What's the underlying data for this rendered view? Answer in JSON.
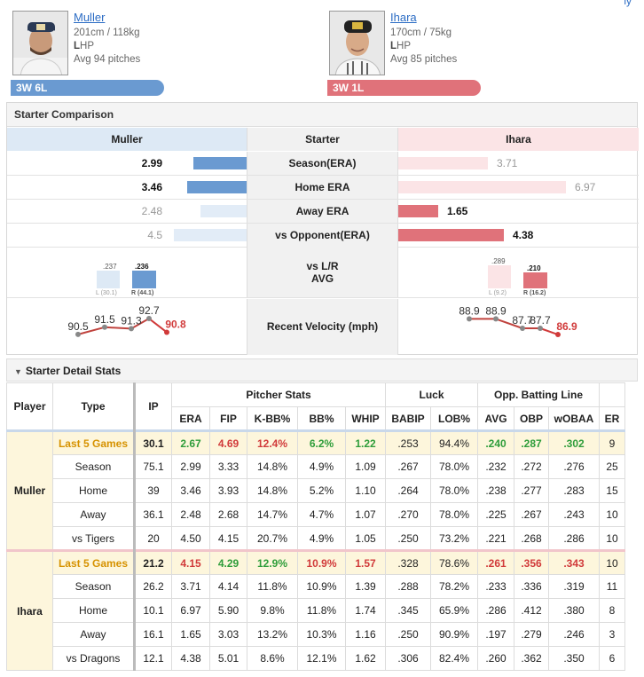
{
  "top_link": "ly",
  "pitchers": {
    "left": {
      "name": "Muller",
      "size": "201cm / 118kg",
      "hand": "LHP",
      "hand_bold": "L",
      "hand_rest": "HP",
      "avg": "Avg 94 pitches",
      "record": "3W 6L",
      "color": "#6a9ad1"
    },
    "right": {
      "name": "Ihara",
      "size": "170cm / 75kg",
      "hand": "LHP",
      "hand_bold": "L",
      "hand_rest": "HP",
      "avg": "Avg 85 pitches",
      "record": "3W 1L",
      "color": "#e0727a"
    }
  },
  "comparison": {
    "title": "Starter Comparison",
    "left_header": "Muller",
    "middle_header": "Starter",
    "right_header": "Ihara",
    "rows": [
      {
        "label": "Season(ERA)",
        "left": "2.99",
        "right": "3.71",
        "left_better": true
      },
      {
        "label": "Home ERA",
        "left": "3.46",
        "right": "6.97",
        "left_better": true
      },
      {
        "label": "Away ERA",
        "left": "2.48",
        "right": "1.65",
        "left_better": false
      },
      {
        "label": "vs Opponent(ERA)",
        "left": "4.5",
        "right": "4.38",
        "left_better": false
      }
    ],
    "lr": {
      "label1": "vs L/R",
      "label2": "AVG",
      "left": {
        "l_val": ".237",
        "r_val": ".236",
        "l_tag": "L (30.1)",
        "r_tag": "R (44.1)"
      },
      "right": {
        "l_val": ".289",
        "r_val": ".210",
        "l_tag": "L (9.2)",
        "r_tag": "R (16.2)"
      }
    },
    "velocity": {
      "label": "Recent Velocity (mph)",
      "left": [
        90.5,
        91.5,
        91.3,
        92.7,
        90.8
      ],
      "left_labels": [
        "90.5",
        "91.5",
        "91.3",
        "92.7",
        "90.8"
      ],
      "right": [
        88.9,
        88.9,
        87.7,
        87.7,
        86.9
      ],
      "right_labels": [
        "88.9",
        "88.9",
        "87.7",
        "87.7",
        "86.9"
      ]
    }
  },
  "detail": {
    "title": "Starter Detail Stats",
    "headers": {
      "player": "Player",
      "type": "Type",
      "ip": "IP",
      "pitcher_stats": "Pitcher Stats",
      "luck": "Luck",
      "opp": "Opp. Batting Line",
      "era": "ERA",
      "fip": "FIP",
      "kbb": "K-BB%",
      "bb": "BB%",
      "whip": "WHIP",
      "babip": "BABIP",
      "lob": "LOB%",
      "avg": "AVG",
      "obp": "OBP",
      "woba": "wOBAA",
      "er": "ER"
    },
    "players": [
      {
        "name": "Muller",
        "rows": [
          {
            "type": "Last 5 Games",
            "ip": "30.1",
            "era": "2.67",
            "fip": "4.69",
            "kbb": "12.4%",
            "bb": "6.2%",
            "whip": "1.22",
            "babip": ".253",
            "lob": "94.4%",
            "avg": ".240",
            "obp": ".287",
            "woba": ".302",
            "er": "9"
          },
          {
            "type": "Season",
            "ip": "75.1",
            "era": "2.99",
            "fip": "3.33",
            "kbb": "14.8%",
            "bb": "4.9%",
            "whip": "1.09",
            "babip": ".267",
            "lob": "78.0%",
            "avg": ".232",
            "obp": ".272",
            "woba": ".276",
            "er": "25"
          },
          {
            "type": "Home",
            "ip": "39",
            "era": "3.46",
            "fip": "3.93",
            "kbb": "14.8%",
            "bb": "5.2%",
            "whip": "1.10",
            "babip": ".264",
            "lob": "78.0%",
            "avg": ".238",
            "obp": ".277",
            "woba": ".283",
            "er": "15"
          },
          {
            "type": "Away",
            "ip": "36.1",
            "era": "2.48",
            "fip": "2.68",
            "kbb": "14.7%",
            "bb": "4.7%",
            "whip": "1.07",
            "babip": ".270",
            "lob": "78.0%",
            "avg": ".225",
            "obp": ".267",
            "woba": ".243",
            "er": "10"
          },
          {
            "type": "vs Tigers",
            "ip": "20",
            "era": "4.50",
            "fip": "4.15",
            "kbb": "20.7%",
            "bb": "4.9%",
            "whip": "1.05",
            "babip": ".250",
            "lob": "73.2%",
            "avg": ".221",
            "obp": ".268",
            "woba": ".286",
            "er": "10"
          }
        ]
      },
      {
        "name": "Ihara",
        "rows": [
          {
            "type": "Last 5 Games",
            "ip": "21.2",
            "era": "4.15",
            "fip": "4.29",
            "kbb": "12.9%",
            "bb": "10.9%",
            "whip": "1.57",
            "babip": ".328",
            "lob": "78.6%",
            "avg": ".261",
            "obp": ".356",
            "woba": ".343",
            "er": "10"
          },
          {
            "type": "Season",
            "ip": "26.2",
            "era": "3.71",
            "fip": "4.14",
            "kbb": "11.8%",
            "bb": "10.9%",
            "whip": "1.39",
            "babip": ".288",
            "lob": "78.2%",
            "avg": ".233",
            "obp": ".336",
            "woba": ".319",
            "er": "11"
          },
          {
            "type": "Home",
            "ip": "10.1",
            "era": "6.97",
            "fip": "5.90",
            "kbb": "9.8%",
            "bb": "11.8%",
            "whip": "1.74",
            "babip": ".345",
            "lob": "65.9%",
            "avg": ".286",
            "obp": ".412",
            "woba": ".380",
            "er": "8"
          },
          {
            "type": "Away",
            "ip": "16.1",
            "era": "1.65",
            "fip": "3.03",
            "kbb": "13.2%",
            "bb": "10.3%",
            "whip": "1.16",
            "babip": ".250",
            "lob": "90.9%",
            "avg": ".197",
            "obp": ".279",
            "woba": ".246",
            "er": "3"
          },
          {
            "type": "vs Dragons",
            "ip": "12.1",
            "era": "4.38",
            "fip": "5.01",
            "kbb": "8.6%",
            "bb": "12.1%",
            "whip": "1.62",
            "babip": ".306",
            "lob": "82.4%",
            "avg": ".260",
            "obp": ".362",
            "woba": ".350",
            "er": "6"
          }
        ]
      }
    ],
    "highlight_colors": {
      "Muller": {
        "era": "gr",
        "fip": "rd",
        "kbb": "rd",
        "bb": "gr",
        "whip": "gr",
        "avg": "gr",
        "obp": "gr",
        "woba": "gr"
      },
      "Ihara": {
        "era": "rd",
        "fip": "gr",
        "kbb": "gr",
        "bb": "rd",
        "whip": "rd",
        "avg": "rd",
        "obp": "rd",
        "woba": "rd"
      }
    }
  }
}
